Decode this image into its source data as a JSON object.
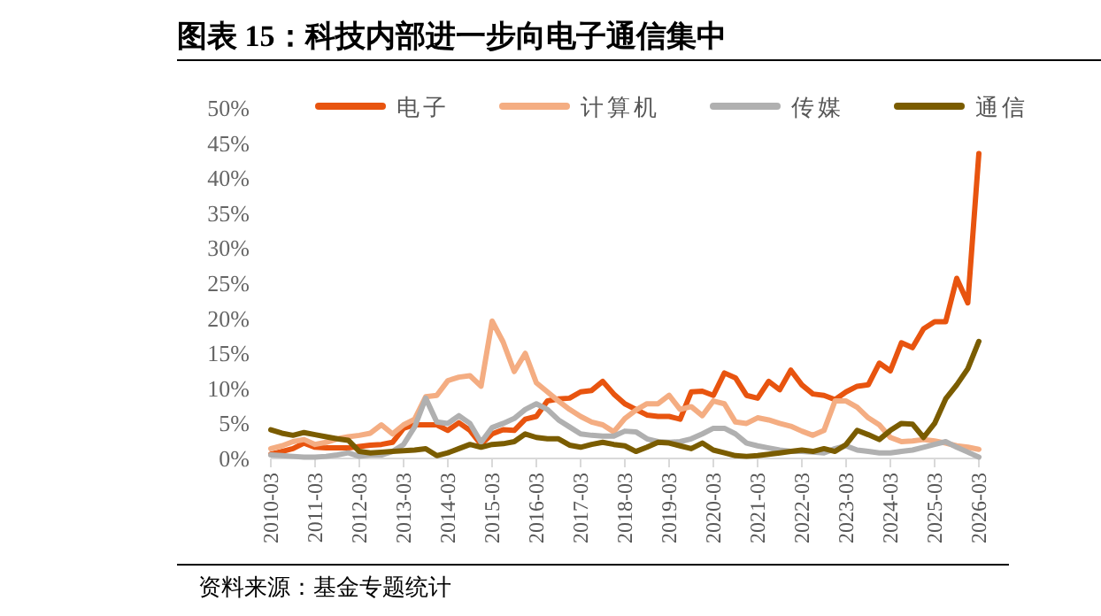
{
  "chart_data": {
    "type": "line",
    "title": "图表 15：科技内部进一步向电子通信集中",
    "categories": [
      "2010-03",
      null,
      null,
      null,
      "2011-03",
      null,
      null,
      null,
      "2012-03",
      null,
      null,
      null,
      "2013-03",
      null,
      null,
      null,
      "2014-03",
      null,
      null,
      null,
      "2015-03",
      null,
      null,
      null,
      "2016-03",
      null,
      null,
      null,
      "2017-03",
      null,
      null,
      null,
      "2018-03",
      null,
      null,
      null,
      "2019-03",
      null,
      null,
      null,
      "2020-03",
      null,
      null,
      null,
      "2021-03",
      null,
      null,
      null,
      "2022-03",
      null,
      null,
      null,
      "2023-03",
      null,
      null,
      null,
      "2024-03",
      null,
      null,
      null,
      "2025-03",
      null,
      null,
      null,
      "2026-03"
    ],
    "series": [
      {
        "name": "电子",
        "color": "#e8540f",
        "values": [
          0.6,
          1.0,
          1.4,
          2.2,
          1.6,
          1.5,
          1.5,
          1.5,
          1.7,
          1.9,
          2.0,
          2.3,
          4.3,
          4.8,
          4.8,
          4.8,
          4.0,
          5.1,
          4.0,
          2.0,
          3.5,
          4.1,
          4.0,
          5.6,
          6.0,
          8.2,
          8.5,
          8.6,
          9.5,
          9.7,
          11.0,
          9.2,
          7.8,
          7.0,
          6.2,
          6.0,
          6.0,
          5.6,
          9.5,
          9.6,
          9.0,
          12.2,
          11.5,
          9.0,
          8.6,
          11.0,
          9.8,
          12.6,
          10.5,
          9.2,
          9.0,
          8.4,
          9.5,
          10.3,
          10.5,
          13.6,
          12.5,
          16.5,
          15.8,
          18.5,
          19.5,
          19.5,
          25.7,
          22.2,
          43.5
        ]
      },
      {
        "name": "计算机",
        "color": "#f4ad82",
        "values": [
          1.4,
          1.8,
          2.4,
          2.7,
          2.0,
          2.3,
          2.8,
          3.1,
          3.3,
          3.6,
          4.8,
          3.5,
          4.8,
          5.6,
          8.8,
          9.0,
          11.1,
          11.6,
          11.8,
          10.3,
          19.6,
          16.6,
          12.4,
          15.0,
          10.8,
          9.5,
          8.2,
          7.0,
          6.0,
          5.2,
          4.8,
          3.8,
          5.7,
          6.9,
          7.8,
          7.8,
          9.0,
          7.0,
          7.4,
          6.1,
          8.2,
          7.8,
          5.2,
          5.0,
          5.8,
          5.5,
          5.0,
          4.6,
          3.9,
          3.3,
          4.0,
          8.2,
          8.2,
          7.3,
          5.8,
          4.8,
          3.0,
          2.4,
          2.5,
          2.7,
          2.5,
          2.2,
          1.8,
          1.6,
          1.3
        ]
      },
      {
        "name": "传媒",
        "color": "#b0b0b0",
        "values": [
          0.5,
          0.4,
          0.3,
          0.2,
          0.2,
          0.3,
          0.5,
          0.8,
          0.3,
          0.5,
          0.5,
          1.0,
          2.0,
          4.5,
          8.6,
          5.2,
          5.0,
          6.1,
          5.0,
          2.3,
          4.4,
          5.0,
          5.7,
          7.0,
          7.8,
          7.0,
          5.5,
          4.5,
          3.5,
          3.3,
          3.2,
          3.2,
          3.9,
          3.8,
          2.8,
          2.4,
          2.3,
          2.4,
          2.8,
          3.5,
          4.3,
          4.3,
          3.5,
          2.2,
          1.8,
          1.5,
          1.2,
          1.0,
          1.0,
          0.9,
          0.8,
          1.4,
          1.8,
          1.2,
          1.0,
          0.8,
          0.8,
          1.0,
          1.2,
          1.6,
          2.0,
          2.4,
          1.6,
          0.9,
          0.2
        ]
      },
      {
        "name": "通信",
        "color": "#7a5c00",
        "values": [
          4.1,
          3.6,
          3.3,
          3.7,
          3.4,
          3.1,
          2.8,
          2.6,
          1.0,
          0.8,
          0.9,
          1.0,
          1.1,
          1.2,
          1.4,
          0.4,
          0.8,
          1.4,
          2.0,
          1.6,
          2.0,
          2.1,
          2.4,
          3.5,
          3.0,
          2.8,
          2.8,
          1.9,
          1.6,
          2.0,
          2.3,
          2.0,
          1.8,
          1.0,
          1.6,
          2.3,
          2.2,
          1.8,
          1.4,
          2.2,
          1.2,
          0.8,
          0.4,
          0.3,
          0.4,
          0.6,
          0.8,
          1.0,
          1.2,
          1.0,
          1.4,
          1.0,
          2.0,
          4.0,
          3.4,
          2.7,
          4.0,
          5.0,
          4.9,
          3.0,
          5.0,
          8.5,
          10.5,
          12.8,
          16.7
        ]
      }
    ],
    "ylim": [
      0,
      50
    ],
    "yticks": [
      {
        "value": 0,
        "label": "0%"
      },
      {
        "value": 5,
        "label": "5%"
      },
      {
        "value": 10,
        "label": "10%"
      },
      {
        "value": 15,
        "label": "15%"
      },
      {
        "value": 20,
        "label": "20%"
      },
      {
        "value": 25,
        "label": "25%"
      },
      {
        "value": 30,
        "label": "30%"
      },
      {
        "value": 35,
        "label": "35%"
      },
      {
        "value": 40,
        "label": "40%"
      },
      {
        "value": 45,
        "label": "45%"
      },
      {
        "value": 50,
        "label": "50%"
      }
    ],
    "grid": false,
    "legend": "top",
    "marker": "none",
    "line_style": "solid",
    "annotations": [
      "资料来源：基金专题统计"
    ]
  }
}
